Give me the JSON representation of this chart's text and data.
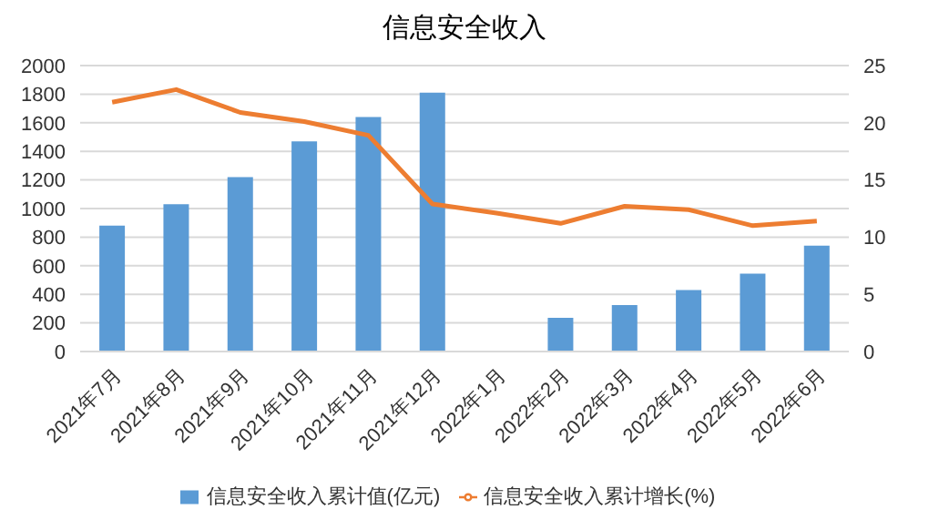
{
  "chart_data": {
    "type": "bar",
    "title": "信息安全收入",
    "categories": [
      "2021年7月",
      "2021年8月",
      "2021年9月",
      "2021年10月",
      "2021年11月",
      "2021年12月",
      "2022年1月",
      "2022年2月",
      "2022年3月",
      "2022年4月",
      "2022年5月",
      "2022年6月"
    ],
    "series": [
      {
        "name": "信息安全收入累计值(亿元)",
        "color": "#5b9bd5",
        "values": [
          880,
          1030,
          1220,
          1470,
          1640,
          1810,
          null,
          235,
          325,
          430,
          545,
          740
        ]
      },
      {
        "name": "信息安全收入累计增长(%)",
        "type": "line",
        "axis": "y2",
        "color": "#ed7d31",
        "values": [
          21.8,
          22.9,
          20.9,
          20.1,
          18.9,
          12.9,
          12.1,
          11.2,
          12.7,
          12.4,
          11.0,
          11.4
        ]
      }
    ],
    "ylim": [
      0,
      2000
    ],
    "yticks": [
      0,
      200,
      400,
      600,
      800,
      1000,
      1200,
      1400,
      1600,
      1800,
      2000
    ],
    "y2lim": [
      0,
      25
    ],
    "y2ticks": [
      0,
      5,
      10,
      15,
      20,
      25
    ],
    "grid": "y",
    "legend": "bottom",
    "marker": "none"
  }
}
